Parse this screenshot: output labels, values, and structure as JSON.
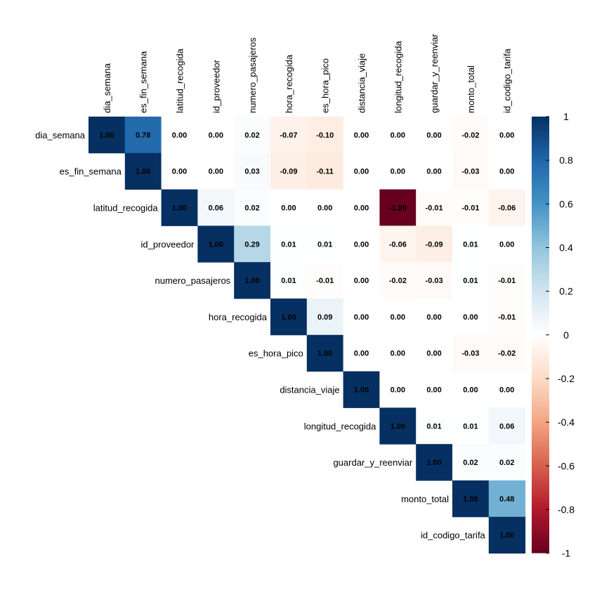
{
  "chart_data": {
    "type": "heatmap",
    "variables": [
      "dia_semana",
      "es_fin_semana",
      "latitud_recogida",
      "id_proveedor",
      "numero_pasajeros",
      "hora_recogida",
      "es_hora_pico",
      "distancia_viaje",
      "longitud_recogida",
      "guardar_y_reenviar",
      "monto_total",
      "id_codigo_tarifa"
    ],
    "matrix_layout": "upper-triangle",
    "values": [
      [
        1.0,
        0.78,
        0.0,
        0.0,
        0.02,
        -0.07,
        -0.1,
        0.0,
        0.0,
        0.0,
        -0.02,
        0.0
      ],
      [
        null,
        1.0,
        0.0,
        0.0,
        0.03,
        -0.09,
        -0.11,
        0.0,
        0.0,
        0.0,
        -0.03,
        0.0
      ],
      [
        null,
        null,
        1.0,
        0.06,
        0.02,
        0.0,
        0.0,
        0.0,
        -1.0,
        -0.01,
        -0.01,
        -0.06
      ],
      [
        null,
        null,
        null,
        1.0,
        0.29,
        0.01,
        0.01,
        0.0,
        -0.06,
        -0.09,
        0.01,
        0.0
      ],
      [
        null,
        null,
        null,
        null,
        1.0,
        0.01,
        -0.01,
        0.0,
        -0.02,
        -0.03,
        0.01,
        -0.01
      ],
      [
        null,
        null,
        null,
        null,
        null,
        1.0,
        0.09,
        0.0,
        0.0,
        0.0,
        0.0,
        -0.01
      ],
      [
        null,
        null,
        null,
        null,
        null,
        null,
        1.0,
        0.0,
        0.0,
        0.0,
        -0.03,
        -0.02
      ],
      [
        null,
        null,
        null,
        null,
        null,
        null,
        null,
        1.0,
        0.0,
        0.0,
        0.0,
        0.0
      ],
      [
        null,
        null,
        null,
        null,
        null,
        null,
        null,
        null,
        1.0,
        0.01,
        0.01,
        0.06
      ],
      [
        null,
        null,
        null,
        null,
        null,
        null,
        null,
        null,
        null,
        1.0,
        0.02,
        0.02
      ],
      [
        null,
        null,
        null,
        null,
        null,
        null,
        null,
        null,
        null,
        null,
        1.0,
        0.48
      ],
      [
        null,
        null,
        null,
        null,
        null,
        null,
        null,
        null,
        null,
        null,
        null,
        1.0
      ]
    ],
    "colorbar": {
      "min": -1,
      "max": 1,
      "ticks": [
        "1",
        "0.8",
        "0.6",
        "0.4",
        "0.2",
        "0",
        "-0.2",
        "-0.4",
        "-0.6",
        "-0.8",
        "-1"
      ],
      "colors": {
        "neg1": "#67001f",
        "neg08": "#b2182b",
        "neg06": "#d6604d",
        "neg04": "#f4a582",
        "neg02": "#fddbc7",
        "zero": "#ffffff",
        "pos02": "#d1e5f0",
        "pos04": "#92c5de",
        "pos06": "#4393c3",
        "pos08": "#2166ac",
        "pos1": "#053061"
      }
    },
    "title": "",
    "grid": false,
    "legend": "right"
  }
}
